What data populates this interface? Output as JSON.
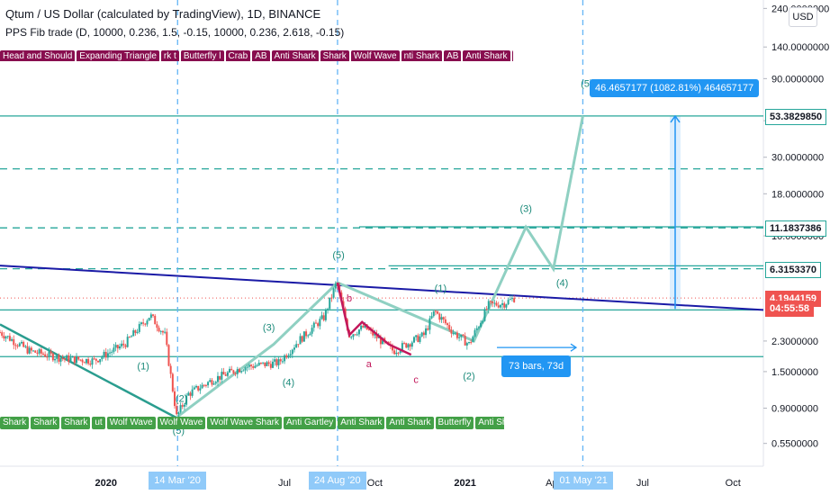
{
  "header": {
    "title": "Qtum / US Dollar (calculated by TradingView), 1D, BINANCE",
    "indicator": "PPS Fib trade (D, 10000, 0.236, 1.5, -0.15, 10000, 0.236, 2.618, -0.15)",
    "currency_button": "USD"
  },
  "pattern_tags_top": [
    "Head and Should",
    "Expanding Triangle",
    "rk t",
    "Butterfly l",
    "Crab",
    "AB",
    "Anti Shark",
    "Shark",
    "Wolf Wave",
    "nti Shark",
    "AB",
    "Anti Shark",
    "ey"
  ],
  "pattern_tags_bottom": [
    "Shark",
    "Shark",
    "Shark",
    "ut",
    "Wolf Wave",
    "Wolf Wave",
    "Wolf Wave Shark",
    "Anti Gartley",
    "Anti Shark",
    "Anti Shark",
    "Butterfly",
    "Anti Shark"
  ],
  "measure_label": "46.4657177 (1082.81%) 464657177",
  "bars_label": "73 bars, 73d",
  "time_badges": [
    "14 Mar '20",
    "24 Aug '20",
    "01 May '21"
  ],
  "price_badges": [
    {
      "label": "53.3829850",
      "value": 53.383,
      "bg": "#ffffff",
      "fg": "#131722",
      "border": "#26a69a"
    },
    {
      "label": "11.1837386",
      "value": 11.1837,
      "bg": "#ffffff",
      "fg": "#131722",
      "border": "#26a69a"
    },
    {
      "label": "6.3153370",
      "value": 6.3153,
      "bg": "#ffffff",
      "fg": "#131722",
      "border": "#26a69a"
    },
    {
      "label": "4.1944159",
      "value": 4.1944,
      "bg": "#ef5350",
      "fg": "#ffffff",
      "border": "#ef5350"
    },
    {
      "label": "04:55:58",
      "value": 3.68,
      "bg": "#ef5350",
      "fg": "#ffffff",
      "border": "#ef5350"
    }
  ],
  "colors": {
    "teal": "#26a69a",
    "trendline": "#1a1aa6",
    "candle_up": "#26a69a",
    "candle_down": "#ef5350",
    "projection": "#8fd0c2",
    "pink": "#c2185b",
    "blue": "#2196f3"
  },
  "wave_labels": [
    {
      "text": "(1)",
      "d": "2020-02-08",
      "v": 1.55,
      "c": "teal"
    },
    {
      "text": "(2)",
      "d": "2020-03-18",
      "v": 0.98,
      "c": "teal"
    },
    {
      "text": "(5)",
      "d": "2020-03-15",
      "v": 0.63,
      "c": "teal"
    },
    {
      "text": "(3)",
      "d": "2020-06-15",
      "v": 2.65,
      "c": "teal"
    },
    {
      "text": "(4)",
      "d": "2020-07-05",
      "v": 1.23,
      "c": "teal"
    },
    {
      "text": "(5)",
      "d": "2020-08-25",
      "v": 7.3,
      "c": "teal"
    },
    {
      "text": "(1)",
      "d": "2020-12-07",
      "v": 4.6,
      "c": "teal"
    },
    {
      "text": "(2)",
      "d": "2021-01-05",
      "v": 1.35,
      "c": "teal"
    },
    {
      "text": "(3)",
      "d": "2021-03-04",
      "v": 14.0,
      "c": "teal"
    },
    {
      "text": "(4)",
      "d": "2021-04-10",
      "v": 4.95,
      "c": "teal"
    },
    {
      "text": "(5)",
      "d": "2021-05-05",
      "v": 80,
      "c": "teal"
    },
    {
      "text": "b",
      "d": "2020-09-05",
      "v": 4.0,
      "c": "pink"
    },
    {
      "text": "a",
      "d": "2020-09-25",
      "v": 1.6,
      "c": "pink"
    },
    {
      "text": "c",
      "d": "2020-11-12",
      "v": 1.28,
      "c": "pink"
    }
  ],
  "chart_data": {
    "type": "candlestick",
    "title": "Qtum / US Dollar (calculated by TradingView), 1D, BINANCE",
    "y_scale": "log",
    "y_ticks": [
      240,
      140,
      90,
      50,
      30,
      18,
      10,
      2.3,
      1.5,
      0.9,
      0.55
    ],
    "y_tick_labels": [
      "240.0000000",
      "140.0000000",
      "90.0000000",
      "50.0000000",
      "30.0000000",
      "18.0000000",
      "10.0000000",
      "2.3000000",
      "1.5000000",
      "0.9000000",
      "0.5500000"
    ],
    "x_ticks": [
      {
        "label": "2020",
        "d": "2020-01-01"
      },
      {
        "label": "Apr",
        "d": "2020-04-01"
      },
      {
        "label": "Jul",
        "d": "2020-07-01"
      },
      {
        "label": "Oct",
        "d": "2020-10-01"
      },
      {
        "label": "2021",
        "d": "2021-01-01"
      },
      {
        "label": "Apr",
        "d": "2021-04-01"
      },
      {
        "label": "Jul",
        "d": "2021-07-01"
      },
      {
        "label": "Oct",
        "d": "2021-10-01"
      }
    ],
    "x_range": [
      "2019-09-15",
      "2021-11-01"
    ],
    "y_range": [
      0.4,
      270
    ],
    "price_path": [
      [
        "2019-09-15",
        2.6
      ],
      [
        "2019-10-15",
        2.0
      ],
      [
        "2019-11-20",
        1.8
      ],
      [
        "2019-12-20",
        1.75
      ],
      [
        "2020-01-20",
        2.2
      ],
      [
        "2020-02-15",
        3.3
      ],
      [
        "2020-03-01",
        2.5
      ],
      [
        "2020-03-13",
        0.8
      ],
      [
        "2020-03-25",
        1.1
      ],
      [
        "2020-04-20",
        1.35
      ],
      [
        "2020-05-20",
        1.6
      ],
      [
        "2020-06-25",
        1.7
      ],
      [
        "2020-07-15",
        2.3
      ],
      [
        "2020-08-10",
        3.2
      ],
      [
        "2020-08-23",
        5.2
      ],
      [
        "2020-09-05",
        2.5
      ],
      [
        "2020-09-20",
        2.8
      ],
      [
        "2020-10-20",
        2.0
      ],
      [
        "2020-11-20",
        2.5
      ],
      [
        "2020-12-01",
        3.5
      ],
      [
        "2020-12-20",
        2.6
      ],
      [
        "2021-01-05",
        2.2
      ],
      [
        "2021-01-25",
        3.8
      ],
      [
        "2021-02-10",
        3.9
      ],
      [
        "2021-02-20",
        4.19
      ]
    ],
    "projection_path": [
      [
        "2020-03-14",
        0.8
      ],
      [
        "2020-06-20",
        2.2
      ],
      [
        "2020-08-24",
        5.2
      ],
      [
        "2021-01-10",
        2.3
      ],
      [
        "2021-03-04",
        11.3
      ],
      [
        "2021-04-01",
        6.3
      ],
      [
        "2021-05-01",
        53.4
      ]
    ],
    "abc_path": [
      [
        "2020-08-24",
        5.2
      ],
      [
        "2020-09-05",
        2.5
      ],
      [
        "2020-09-18",
        3.0
      ],
      [
        "2020-10-15",
        2.2
      ],
      [
        "2020-11-07",
        1.9
      ]
    ],
    "trendline": {
      "start": [
        "2019-09-15",
        6.6
      ],
      "end": [
        "2021-11-01",
        3.55
      ]
    },
    "wedge_line": {
      "start": [
        "2019-09-15",
        2.9
      ],
      "end": [
        "2020-03-14",
        0.78
      ]
    },
    "horizontal_levels": [
      {
        "v": 53.383,
        "style": "solid"
      },
      {
        "v": 25.5,
        "style": "dashed"
      },
      {
        "v": 11.1837,
        "style": "dashed"
      },
      {
        "v": 11.35,
        "style": "solid",
        "from": "2020-09-15"
      },
      {
        "v": 6.3153,
        "style": "dashed"
      },
      {
        "v": 6.58,
        "style": "solid",
        "from": "2020-10-15"
      },
      {
        "v": 3.55,
        "style": "solid"
      },
      {
        "v": 1.85,
        "style": "solid"
      }
    ],
    "vertical_lines": [
      "2020-03-14",
      "2020-08-24",
      "2021-05-01"
    ],
    "last_price": 4.1944159
  }
}
